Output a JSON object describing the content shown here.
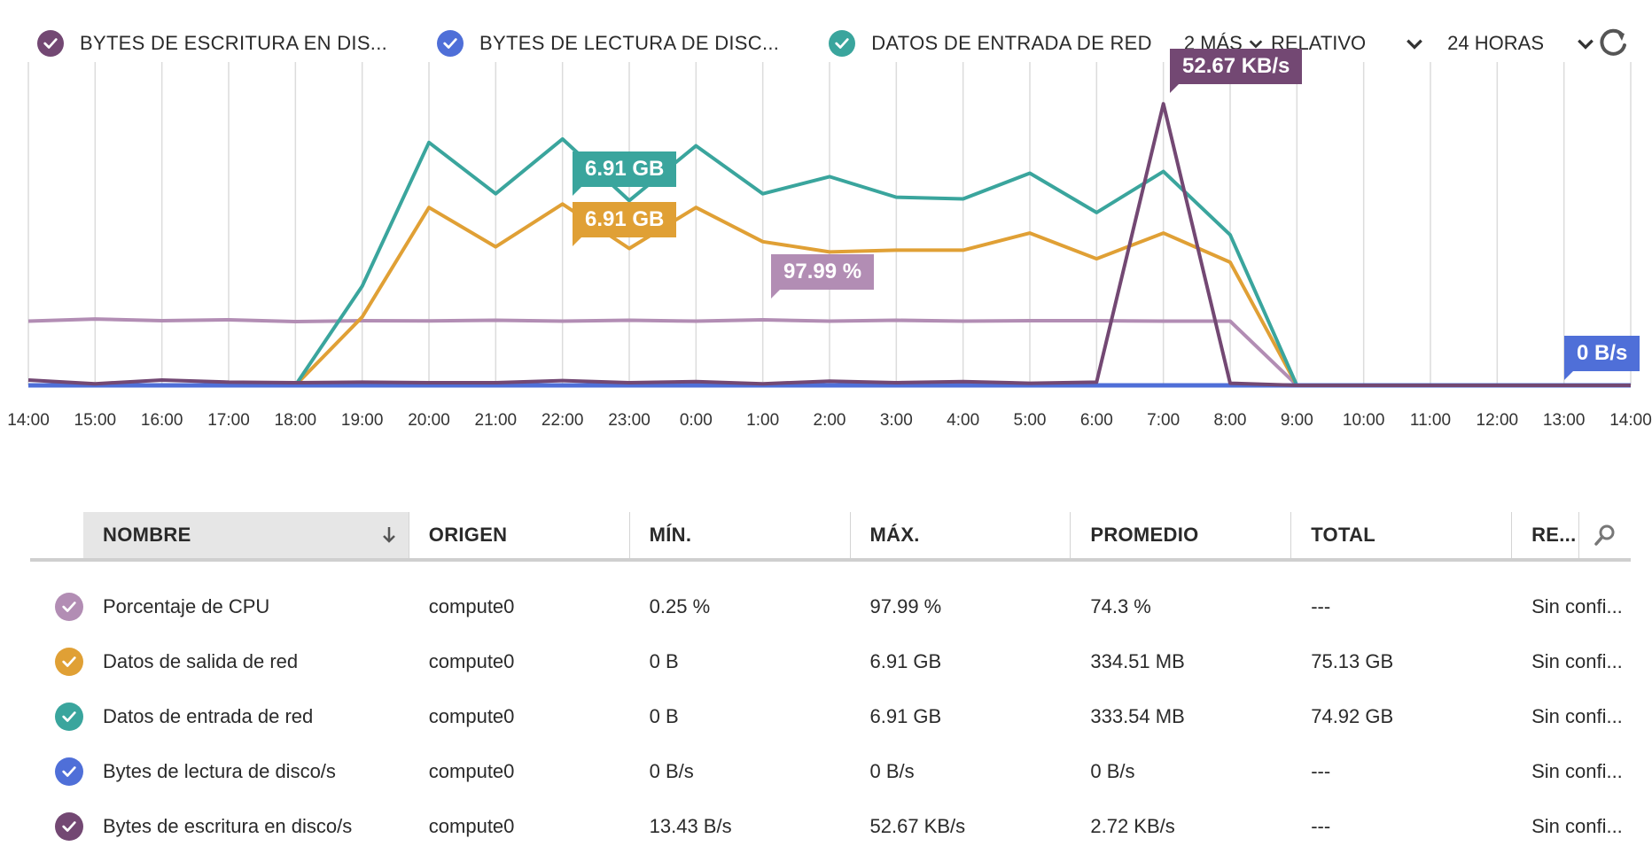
{
  "colors": {
    "purple": "#734873",
    "blue": "#4f6fd8",
    "teal": "#3aa59d",
    "orange": "#e0a035",
    "lilac": "#b28db4",
    "grid": "#dcdcdc"
  },
  "legend": [
    {
      "label": "BYTES DE ESCRITURA EN DIS...",
      "color": "#734873",
      "icon": "check-icon"
    },
    {
      "label": "BYTES DE LECTURA DE DISC...",
      "color": "#4f6fd8",
      "icon": "check-icon"
    },
    {
      "label": "DATOS DE ENTRADA DE RED",
      "color": "#3aa59d",
      "icon": "check-icon"
    }
  ],
  "more_label": "2 MÁS",
  "mode_label": "RELATIVO",
  "range_label": "24 HORAS",
  "chart_data": {
    "type": "line",
    "x": [
      "14:00",
      "15:00",
      "16:00",
      "17:00",
      "18:00",
      "19:00",
      "20:00",
      "21:00",
      "22:00",
      "23:00",
      "0:00",
      "1:00",
      "2:00",
      "3:00",
      "4:00",
      "5:00",
      "6:00",
      "7:00",
      "8:00",
      "9:00",
      "10:00",
      "11:00",
      "12:00",
      "13:00",
      "14:00"
    ],
    "series": [
      {
        "name": "Porcentaje de CPU",
        "color": "#b28db4",
        "values": [
          75.5,
          78,
          76,
          77,
          75,
          76,
          75.7,
          76.5,
          75.5,
          76.5,
          75.5,
          77,
          75.5,
          76.5,
          75.5,
          76,
          76,
          75.5,
          75.5,
          0.25,
          0.25,
          0.25,
          0.25,
          0.25,
          0.25
        ]
      },
      {
        "name": "Datos de salida de red",
        "color": "#e0a035",
        "values": [
          0,
          0,
          0,
          0,
          0,
          2,
          5.2,
          4.05,
          5.3,
          4,
          5.2,
          4.2,
          3.9,
          3.95,
          3.95,
          4.45,
          3.7,
          4.45,
          3.6,
          0,
          0,
          0,
          0,
          0,
          0
        ]
      },
      {
        "name": "Datos de entrada de red",
        "color": "#3aa59d",
        "values": [
          0,
          0,
          0,
          0,
          0,
          2.9,
          7.1,
          5.6,
          7.2,
          5.4,
          7.0,
          5.6,
          6.1,
          5.5,
          5.45,
          6.2,
          5.05,
          6.25,
          4.4,
          0,
          0,
          0,
          0,
          0,
          0
        ]
      },
      {
        "name": "Bytes de lectura de disco/s",
        "color": "#4f6fd8",
        "values": [
          0,
          0,
          0,
          0,
          0,
          0,
          0,
          0,
          0,
          0,
          0,
          0,
          0,
          0,
          0,
          0,
          0,
          0,
          0,
          0,
          0,
          0,
          0,
          0,
          0
        ]
      },
      {
        "name": "Bytes de escritura en disco/s",
        "color": "#734873",
        "values": [
          1,
          0.3,
          1,
          0.6,
          0.5,
          0.6,
          0.5,
          0.5,
          0.9,
          0.5,
          0.7,
          0.3,
          0.8,
          0.5,
          0.7,
          0.4,
          0.6,
          52.67,
          0.4,
          0,
          0,
          0,
          0,
          0,
          0
        ]
      }
    ]
  },
  "callouts": [
    {
      "text": "52.67 KB/s",
      "color": "#734873"
    },
    {
      "text": "6.91 GB",
      "color": "#3aa59d"
    },
    {
      "text": "6.91 GB",
      "color": "#e0a035"
    },
    {
      "text": "97.99 %",
      "color": "#b28db4"
    },
    {
      "text": "0 B/s",
      "color": "#4f6fd8"
    }
  ],
  "table": {
    "headers": [
      "NOMBRE",
      "ORIGEN",
      "MÍN.",
      "MÁX.",
      "PROMEDIO",
      "TOTAL",
      "RE..."
    ],
    "rows": [
      {
        "color": "#b28db4",
        "name": "Porcentaje de CPU",
        "origin": "compute0",
        "min": "0.25 %",
        "max": "97.99 %",
        "avg": "74.3 %",
        "total": "---",
        "re": "Sin confi..."
      },
      {
        "color": "#e0a035",
        "name": "Datos de salida de red",
        "origin": "compute0",
        "min": "0 B",
        "max": "6.91 GB",
        "avg": "334.51 MB",
        "total": "75.13 GB",
        "re": "Sin confi..."
      },
      {
        "color": "#3aa59d",
        "name": "Datos de entrada de red",
        "origin": "compute0",
        "min": "0 B",
        "max": "6.91 GB",
        "avg": "333.54 MB",
        "total": "74.92 GB",
        "re": "Sin confi..."
      },
      {
        "color": "#4f6fd8",
        "name": "Bytes de lectura de disco/s",
        "origin": "compute0",
        "min": "0 B/s",
        "max": "0 B/s",
        "avg": "0 B/s",
        "total": "---",
        "re": "Sin confi..."
      },
      {
        "color": "#734873",
        "name": "Bytes de escritura en disco/s",
        "origin": "compute0",
        "min": "13.43 B/s",
        "max": "52.67 KB/s",
        "avg": "2.72 KB/s",
        "total": "---",
        "re": "Sin confi..."
      }
    ]
  }
}
